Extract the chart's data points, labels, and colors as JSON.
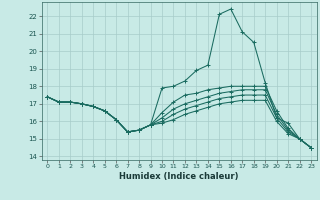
{
  "xlabel": "Humidex (Indice chaleur)",
  "xlim": [
    -0.5,
    23.5
  ],
  "ylim": [
    13.8,
    22.8
  ],
  "yticks": [
    14,
    15,
    16,
    17,
    18,
    19,
    20,
    21,
    22
  ],
  "xticks": [
    0,
    1,
    2,
    3,
    4,
    5,
    6,
    7,
    8,
    9,
    10,
    11,
    12,
    13,
    14,
    15,
    16,
    17,
    18,
    19,
    20,
    21,
    22,
    23
  ],
  "bg_color": "#c8eae6",
  "grid_color": "#a8ccca",
  "line_color": "#1a6b60",
  "series": [
    [
      17.4,
      17.1,
      17.1,
      17.0,
      16.85,
      16.6,
      16.1,
      15.4,
      15.5,
      15.8,
      17.9,
      18.0,
      18.3,
      18.9,
      19.2,
      22.1,
      22.4,
      21.1,
      20.5,
      18.2,
      16.2,
      15.9,
      15.0,
      14.5
    ],
    [
      17.4,
      17.1,
      17.1,
      17.0,
      16.85,
      16.6,
      16.1,
      15.4,
      15.5,
      15.8,
      16.5,
      17.1,
      17.5,
      17.6,
      17.8,
      17.9,
      18.0,
      18.0,
      18.0,
      18.0,
      16.6,
      15.6,
      15.0,
      14.5
    ],
    [
      17.4,
      17.1,
      17.1,
      17.0,
      16.85,
      16.6,
      16.1,
      15.4,
      15.5,
      15.8,
      16.2,
      16.7,
      17.0,
      17.2,
      17.4,
      17.6,
      17.7,
      17.8,
      17.8,
      17.8,
      16.4,
      15.5,
      15.0,
      14.5
    ],
    [
      17.4,
      17.1,
      17.1,
      17.0,
      16.85,
      16.6,
      16.1,
      15.4,
      15.5,
      15.8,
      16.0,
      16.4,
      16.7,
      16.9,
      17.1,
      17.3,
      17.4,
      17.5,
      17.5,
      17.5,
      16.2,
      15.4,
      15.0,
      14.5
    ],
    [
      17.4,
      17.1,
      17.1,
      17.0,
      16.85,
      16.6,
      16.1,
      15.4,
      15.5,
      15.8,
      15.9,
      16.1,
      16.4,
      16.6,
      16.8,
      17.0,
      17.1,
      17.2,
      17.2,
      17.2,
      16.0,
      15.3,
      15.0,
      14.5
    ]
  ]
}
